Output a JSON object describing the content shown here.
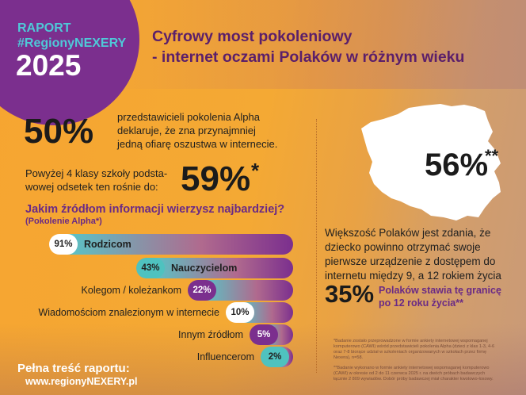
{
  "header": {
    "badge": {
      "line1": "RAPORT",
      "line2": "#RegionyNEXERY",
      "year": "2025"
    },
    "title_line1": "Cyfrowy most pokoleniowy",
    "title_line2": "- internet oczami Polaków w różnym wieku"
  },
  "stat1": {
    "value": "50%",
    "text_lines": [
      "przedstawicieli pokolenia Alpha",
      "deklaruje, że zna przynajmniej",
      "jedną ofiarę oszustwa w internecie."
    ]
  },
  "stat2": {
    "text_lines": [
      "Powyżej 4 klasy szkoły podsta-",
      "wowej odsetek ten rośnie do:"
    ],
    "value": "59%",
    "mark": "*"
  },
  "question": {
    "title": "Jakim źródłom informacji wierzysz najbardziej?",
    "subtitle": "(Pokolenie Alpha*)"
  },
  "chart_data": {
    "type": "bar",
    "title": "Jakim źródłom informacji wierzysz najbardziej?",
    "subtitle": "(Pokolenie Alpha*)",
    "categories": [
      "Rodzicom",
      "Nauczycielom",
      "Kolegom / koleżankom",
      "Wiadomościom znalezionym w internecie",
      "Innym źródłom",
      "Influencerom"
    ],
    "values": [
      91,
      43,
      22,
      10,
      5,
      2
    ],
    "value_labels": [
      "91%",
      "43%",
      "22%",
      "10%",
      "5%",
      "2%"
    ],
    "bar_color_start": "#57c6c7",
    "bar_color_end": "#7b2f8e",
    "pill_colors": [
      "#ffffff",
      "#4fc2bf",
      "#7b2f8e",
      "#ffffff",
      "#7b2f8e",
      "#4fc2bf"
    ]
  },
  "map": {
    "value": "56%",
    "mark": "**",
    "color": "#ffffff"
  },
  "right_text": {
    "lines": [
      "Większość Polaków jest zdania, że",
      "dziecko powinno otrzymać swoje",
      "pierwsze urządzenie z dostępem do",
      "internetu między 9, a 12 rokiem życia"
    ]
  },
  "stat3": {
    "value": "35%",
    "lines": [
      "Polaków stawia tę granicę",
      "po 12 roku życia**"
    ]
  },
  "footer": {
    "label": "Pełna treść raportu:",
    "url": "www.regionyNEXERY.pl"
  },
  "footnotes": {
    "note1": "*Badanie zostało przeprowadzone w formie ankiety internetowej wspomaganej komputerowo (CAWI) wśród przedstawicieli pokolenia Alpha (dzieci z klas 1-3, 4-6 oraz 7-8 biorące udział w szkoleniach organizowanych w szkołach przez firmę Nexera), n=58.",
    "note2": "**Badanie wykonano w formie ankiety internetowej wspomaganej komputerowo (CAWI) w okresie od 2 do 11 czerwca 2025 r. na dwóch próbach badawczych łącznie 2 809 wywiadów. Dobór próby badawczej miał charakter kwotowo-losowy."
  },
  "colors": {
    "orange": "#f6a531",
    "purple": "#7b2f8e",
    "teal": "#4fc9d8",
    "title": "#5b1f6a"
  }
}
